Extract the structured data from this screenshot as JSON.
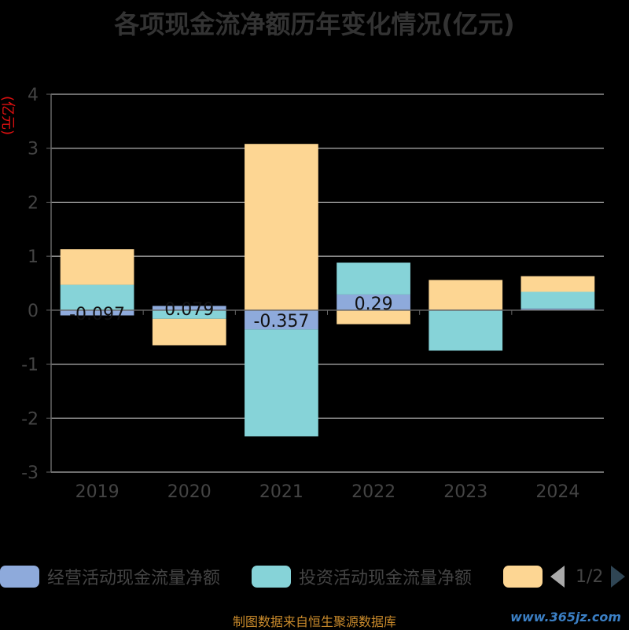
{
  "title": "各项现金流净额历年变化情况(亿元)",
  "footer": "制图数据来自恒生聚源数据库",
  "watermark": "www.365jz.com",
  "legend": {
    "items": [
      {
        "label": "经营活动现金流量净额",
        "color": "#8eaadb"
      },
      {
        "label": "投资活动现金流量净额",
        "color": "#86d3d8"
      },
      {
        "label": "",
        "color": "#fdd693"
      }
    ],
    "page": "1/2"
  },
  "chart_data": {
    "type": "bar",
    "stacked": true,
    "categories": [
      "2019",
      "2020",
      "2021",
      "2022",
      "2023",
      "2024"
    ],
    "ylabel": "(亿元)",
    "ylim": [
      -3,
      4
    ],
    "yticks": [
      -3,
      -2,
      -1,
      0,
      1,
      2,
      3,
      4
    ],
    "grid": true,
    "series": [
      {
        "name": "经营活动现金流量净额",
        "color": "#8eaadb",
        "values": [
          -0.097,
          0.079,
          -0.357,
          0.29,
          0.01,
          0.03
        ],
        "labels": [
          "-0.097",
          "0.079",
          "-0.357",
          "0.29",
          "",
          ""
        ]
      },
      {
        "name": "投资活动现金流量净额",
        "color": "#86d3d8",
        "values": [
          0.47,
          -0.16,
          -1.98,
          0.59,
          -0.75,
          0.31
        ]
      },
      {
        "name": "",
        "color": "#fdd693",
        "values": [
          0.66,
          -0.49,
          3.08,
          -0.26,
          0.55,
          0.29
        ]
      }
    ]
  }
}
